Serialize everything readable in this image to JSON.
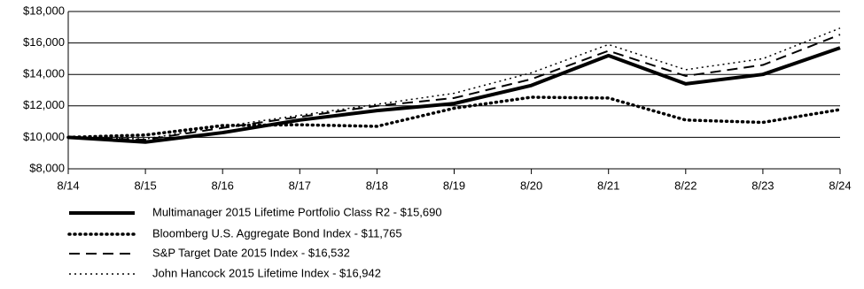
{
  "chart_data": {
    "type": "line",
    "categories": [
      "8/14",
      "8/15",
      "8/16",
      "8/17",
      "8/18",
      "8/19",
      "8/20",
      "8/21",
      "8/22",
      "8/23",
      "8/24"
    ],
    "series": [
      {
        "name": "Multimanager 2015 Lifetime Portfolio Class R2 - $15,690",
        "color": "#000000",
        "style": "solid",
        "width": 4,
        "values": [
          10000,
          9700,
          10300,
          11100,
          11700,
          12150,
          13300,
          15200,
          13400,
          14000,
          15690
        ]
      },
      {
        "name": "Bloomberg U.S. Aggregate Bond Index - $11,765",
        "color": "#000000",
        "style": "dotted",
        "width": 3.5,
        "values": [
          10000,
          10150,
          10750,
          10800,
          10700,
          11850,
          12550,
          12500,
          11100,
          10950,
          11765
        ]
      },
      {
        "name": "S&P Target Date 2015 Index - $16,532",
        "color": "#000000",
        "style": "dashed",
        "width": 2,
        "values": [
          10000,
          9850,
          10600,
          11300,
          12000,
          12500,
          13700,
          15500,
          13900,
          14600,
          16532
        ]
      },
      {
        "name": "John Hancock 2015 Lifetime Index - $16,942",
        "color": "#000000",
        "style": "fine-dotted",
        "width": 1.5,
        "values": [
          10000,
          9900,
          10700,
          11400,
          12100,
          12800,
          14100,
          15900,
          14300,
          15000,
          16942
        ]
      }
    ],
    "ylim": [
      8000,
      18000
    ],
    "yticks": [
      {
        "value": 8000,
        "label": "$8,000"
      },
      {
        "value": 10000,
        "label": "$10,000"
      },
      {
        "value": 12000,
        "label": "$12,000"
      },
      {
        "value": 14000,
        "label": "$14,000"
      },
      {
        "value": 16000,
        "label": "$16,000"
      },
      {
        "value": 18000,
        "label": "$18,000"
      }
    ],
    "grid": true
  }
}
